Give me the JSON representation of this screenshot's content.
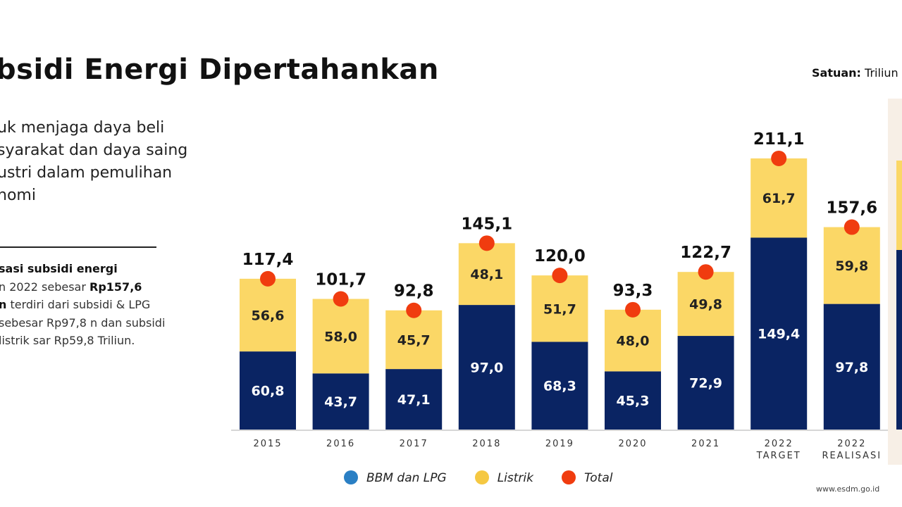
{
  "title": "bsidi Energi Dipertahankan",
  "unit_label": "Satuan:",
  "unit_value": "Triliun",
  "lead_text": "uk menjaga daya beli syarakat dan daya saing ustri dalam pemulihan nomi",
  "note": {
    "b1": "sasi subsidi energi",
    "t1": "n 2022 sebesar ",
    "b2": "Rp157,6",
    "b3": "n",
    "t2": " terdiri dari subsidi & LPG sebesar Rp97,8 n dan subsidi listrik sar Rp59,8 Triliun."
  },
  "website": "www.esdm.go.id",
  "colors": {
    "bbm": "#0a2463",
    "listrik": "#fbd766",
    "total": "#f03c0f",
    "legend_bbm": "#2a7fc4",
    "legend_listrik": "#f5c842"
  },
  "chart_data": {
    "type": "bar",
    "stacked": true,
    "categories": [
      [
        "2015"
      ],
      [
        "2016"
      ],
      [
        "2017"
      ],
      [
        "2018"
      ],
      [
        "2019"
      ],
      [
        "2020"
      ],
      [
        "2021"
      ],
      [
        "2022",
        "TARGET"
      ],
      [
        "2022",
        "REALISASI"
      ]
    ],
    "series": [
      {
        "name": "BBM dan LPG",
        "values": [
          60.8,
          43.7,
          47.1,
          97.0,
          68.3,
          45.3,
          72.9,
          149.4,
          97.8
        ]
      },
      {
        "name": "Listrik",
        "values": [
          56.6,
          58.0,
          45.7,
          48.1,
          51.7,
          48.0,
          49.8,
          61.7,
          59.8
        ]
      },
      {
        "name": "Total",
        "values": [
          117.4,
          101.7,
          92.8,
          145.1,
          120.0,
          93.3,
          122.7,
          211.1,
          157.6
        ]
      }
    ],
    "value_labels": {
      "bbm": [
        "60,8",
        "43,7",
        "47,1",
        "97,0",
        "68,3",
        "45,3",
        "72,9",
        "149,4",
        "97,8"
      ],
      "listrik": [
        "56,6",
        "58,0",
        "45,7",
        "48,1",
        "51,7",
        "48,0",
        "49,8",
        "61,7",
        "59,8"
      ],
      "total": [
        "117,4",
        "101,7",
        "92,8",
        "145,1",
        "120,0",
        "93,3",
        "122,7",
        "211,1",
        "157,6"
      ]
    },
    "legend": [
      "BBM dan LPG",
      "Listrik",
      "Total"
    ],
    "legend_position": "bottom",
    "grid": false
  }
}
